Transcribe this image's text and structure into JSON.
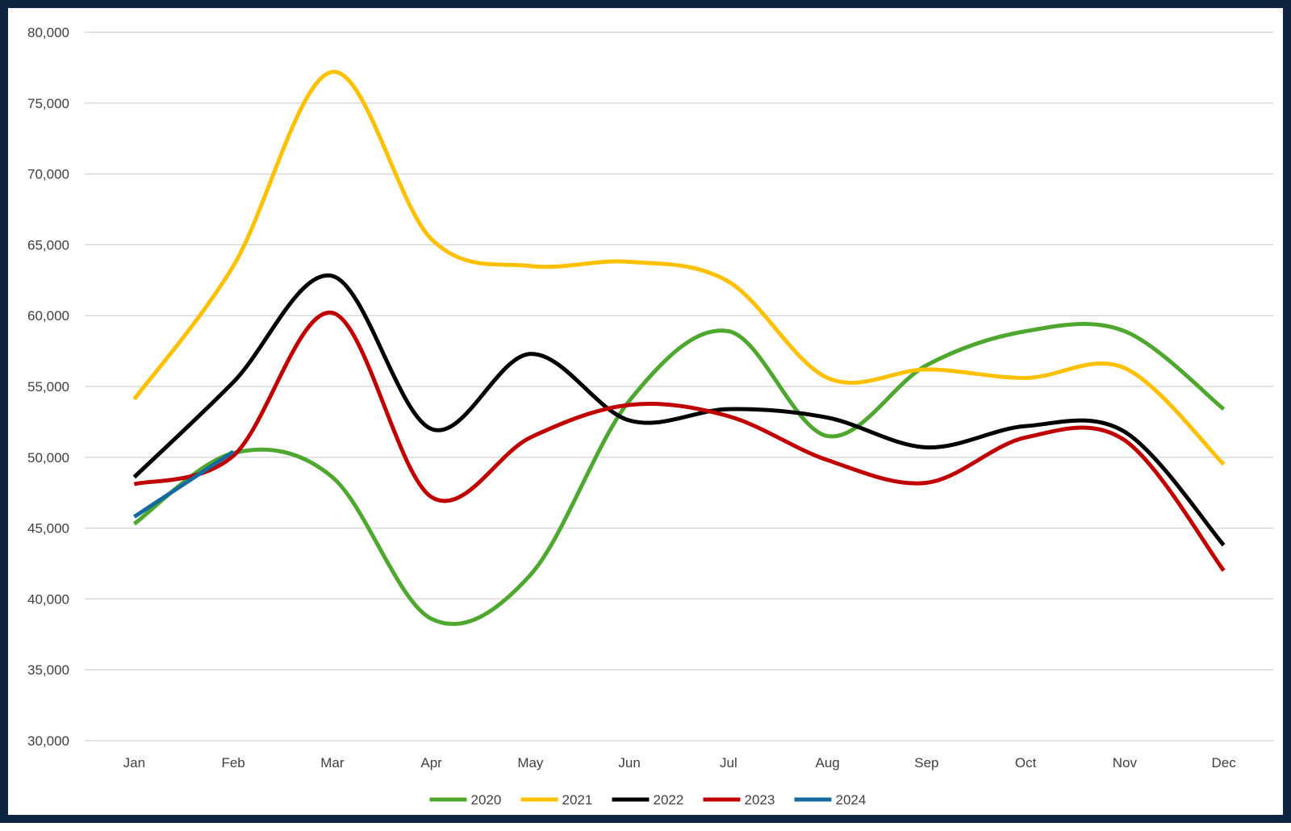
{
  "chart_data": {
    "type": "line",
    "title": "",
    "xlabel": "",
    "ylabel": "",
    "categories": [
      "Jan",
      "Feb",
      "Mar",
      "Apr",
      "May",
      "Jun",
      "Jul",
      "Aug",
      "Sep",
      "Oct",
      "Nov",
      "Dec"
    ],
    "ylim": [
      30000,
      80000
    ],
    "yticks": [
      30000,
      35000,
      40000,
      45000,
      50000,
      55000,
      60000,
      65000,
      70000,
      75000,
      80000
    ],
    "ytick_labels": [
      "30,000",
      "35,000",
      "40,000",
      "45,000",
      "50,000",
      "55,000",
      "60,000",
      "65,000",
      "70,000",
      "75,000",
      "80,000"
    ],
    "grid": true,
    "smooth": true,
    "legend_position": "bottom",
    "series": [
      {
        "name": "2020",
        "color": "#4ea72e",
        "values": [
          45300,
          50300,
          48600,
          38600,
          41700,
          54000,
          58900,
          51500,
          56500,
          58900,
          58900,
          53400
        ]
      },
      {
        "name": "2021",
        "color": "#ffc000",
        "values": [
          54100,
          63500,
          77200,
          65400,
          63500,
          63800,
          62400,
          55600,
          56200,
          55600,
          56300,
          49500
        ]
      },
      {
        "name": "2022",
        "color": "#000000",
        "values": [
          48600,
          55300,
          62800,
          52000,
          57300,
          52600,
          53400,
          52800,
          50700,
          52200,
          51800,
          43800
        ]
      },
      {
        "name": "2023",
        "color": "#c00000",
        "values": [
          48100,
          50100,
          60200,
          47200,
          51400,
          53700,
          52900,
          49800,
          48200,
          51400,
          51200,
          42000
        ]
      },
      {
        "name": "2024",
        "color": "#156b9e",
        "values": [
          45800,
          50400,
          null,
          null,
          null,
          null,
          null,
          null,
          null,
          null,
          null,
          null
        ]
      }
    ]
  }
}
